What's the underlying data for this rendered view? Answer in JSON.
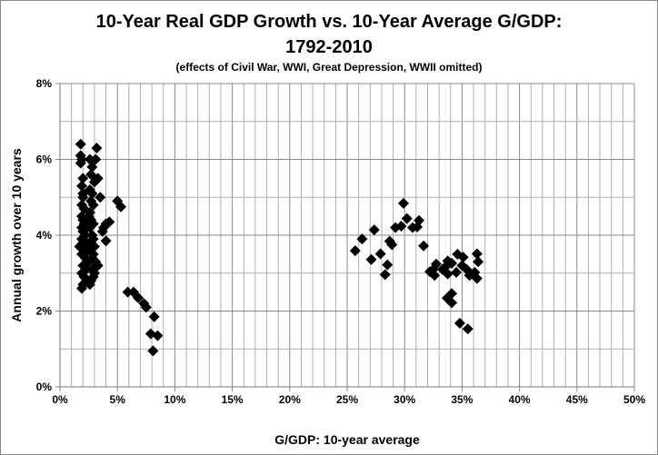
{
  "chart_data": {
    "type": "scatter",
    "title_line1": "10-Year Real GDP Growth vs. 10-Year Average G/GDP:",
    "title_line2": "1792-2010",
    "subtitle": "(effects of Civil War, WWI, Great Depression, WWII omitted)",
    "xlabel": "G/GDP: 10-year average",
    "ylabel": "Annual growth over 10 years",
    "xlim": [
      0,
      50
    ],
    "ylim": [
      0,
      8
    ],
    "x_ticks": [
      "0%",
      "5%",
      "10%",
      "15%",
      "20%",
      "25%",
      "30%",
      "35%",
      "40%",
      "45%",
      "50%"
    ],
    "y_ticks": [
      "0%",
      "2%",
      "4%",
      "6%",
      "8%"
    ],
    "grid": {
      "x_minor_step_pct": 1,
      "y_minor_step_pct": 1
    },
    "marker": "diamond",
    "marker_color": "#000000",
    "grid_color": "#b0b0b0",
    "points": [
      [
        1.8,
        6.4
      ],
      [
        1.8,
        6.1
      ],
      [
        1.9,
        6.0
      ],
      [
        1.8,
        5.9
      ],
      [
        2.0,
        5.5
      ],
      [
        1.9,
        5.3
      ],
      [
        2.0,
        5.1
      ],
      [
        2.0,
        5.0
      ],
      [
        1.9,
        4.8
      ],
      [
        2.1,
        4.7
      ],
      [
        1.9,
        4.5
      ],
      [
        2.0,
        4.4
      ],
      [
        2.1,
        4.3
      ],
      [
        1.9,
        4.2
      ],
      [
        2.0,
        4.1
      ],
      [
        2.2,
        4.0
      ],
      [
        1.9,
        3.9
      ],
      [
        2.0,
        3.8
      ],
      [
        2.3,
        3.8
      ],
      [
        1.7,
        3.7
      ],
      [
        2.1,
        3.7
      ],
      [
        2.4,
        3.6
      ],
      [
        1.9,
        3.5
      ],
      [
        2.2,
        3.4
      ],
      [
        2.5,
        3.3
      ],
      [
        2.0,
        3.2
      ],
      [
        2.3,
        3.1
      ],
      [
        1.9,
        3.0
      ],
      [
        2.1,
        2.9
      ],
      [
        2.4,
        2.8
      ],
      [
        2.0,
        2.7
      ],
      [
        1.9,
        2.6
      ],
      [
        2.6,
        2.7
      ],
      [
        2.6,
        6.0
      ],
      [
        3.2,
        6.3
      ],
      [
        3.1,
        6.0
      ],
      [
        2.8,
        5.8
      ],
      [
        2.7,
        5.6
      ],
      [
        3.3,
        5.5
      ],
      [
        3.0,
        5.4
      ],
      [
        2.6,
        5.2
      ],
      [
        2.8,
        5.1
      ],
      [
        3.5,
        5.0
      ],
      [
        2.7,
        4.9
      ],
      [
        2.9,
        4.8
      ],
      [
        2.6,
        4.6
      ],
      [
        2.7,
        4.4
      ],
      [
        2.9,
        4.3
      ],
      [
        2.6,
        4.2
      ],
      [
        2.8,
        4.0
      ],
      [
        2.9,
        3.9
      ],
      [
        2.7,
        3.8
      ],
      [
        3.0,
        3.7
      ],
      [
        2.9,
        3.5
      ],
      [
        2.8,
        3.4
      ],
      [
        3.1,
        3.3
      ],
      [
        3.3,
        3.2
      ],
      [
        2.8,
        3.1
      ],
      [
        3.0,
        3.0
      ],
      [
        2.9,
        2.9
      ],
      [
        2.7,
        2.8
      ],
      [
        2.6,
        3.6
      ],
      [
        2.5,
        4.5
      ],
      [
        3.8,
        4.2
      ],
      [
        4.0,
        4.3
      ],
      [
        4.3,
        4.35
      ],
      [
        3.7,
        4.1
      ],
      [
        4.0,
        3.85
      ],
      [
        5.0,
        4.9
      ],
      [
        5.3,
        4.75
      ],
      [
        5.9,
        2.5
      ],
      [
        6.4,
        2.5
      ],
      [
        6.8,
        2.35
      ],
      [
        7.3,
        2.2
      ],
      [
        7.5,
        2.1
      ],
      [
        8.2,
        1.85
      ],
      [
        7.9,
        1.4
      ],
      [
        8.5,
        1.35
      ],
      [
        8.1,
        0.95
      ],
      [
        29.9,
        4.84
      ],
      [
        30.2,
        4.44
      ],
      [
        29.2,
        4.2
      ],
      [
        29.7,
        4.24
      ],
      [
        30.7,
        4.2
      ],
      [
        31.25,
        4.39
      ],
      [
        31.1,
        4.22
      ],
      [
        27.35,
        4.14
      ],
      [
        26.3,
        3.9
      ],
      [
        25.7,
        3.59
      ],
      [
        27.1,
        3.36
      ],
      [
        27.9,
        3.51
      ],
      [
        28.9,
        3.75
      ],
      [
        28.7,
        3.84
      ],
      [
        28.5,
        3.22
      ],
      [
        28.3,
        2.96
      ],
      [
        31.65,
        3.72
      ],
      [
        32.2,
        3.04
      ],
      [
        32.75,
        3.24
      ],
      [
        32.6,
        2.94
      ],
      [
        33.75,
        3.32
      ],
      [
        34.6,
        3.5
      ],
      [
        35.1,
        3.42
      ],
      [
        33.75,
        2.98
      ],
      [
        34.5,
        3.02
      ],
      [
        35.4,
        3.1
      ],
      [
        36.3,
        3.51
      ],
      [
        36.4,
        3.3
      ],
      [
        36.1,
        3.02
      ],
      [
        36.3,
        2.86
      ],
      [
        35.65,
        2.94
      ],
      [
        33.3,
        3.1
      ],
      [
        34.1,
        3.26
      ],
      [
        32.5,
        3.1
      ],
      [
        33.5,
        3.15
      ],
      [
        35.0,
        3.2
      ],
      [
        34.1,
        2.46
      ],
      [
        33.7,
        2.34
      ],
      [
        34.1,
        2.22
      ],
      [
        34.8,
        1.68
      ],
      [
        35.5,
        1.53
      ]
    ]
  }
}
